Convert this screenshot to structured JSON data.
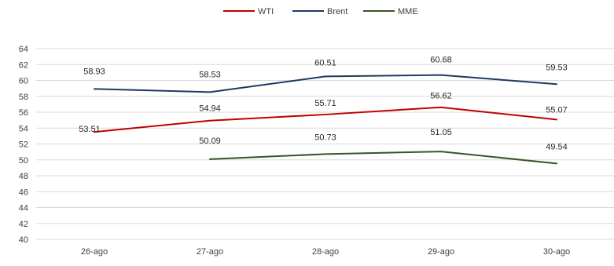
{
  "chart_data": {
    "type": "line",
    "categories": [
      "26-ago",
      "27-ago",
      "28-ago",
      "29-ago",
      "30-ago"
    ],
    "series": [
      {
        "name": "WTI",
        "values": [
          53.51,
          54.94,
          55.71,
          56.62,
          55.07
        ],
        "color": "#c00000",
        "labels": [
          "53.51",
          "54.94",
          "55.71",
          "56.62",
          "55.07"
        ]
      },
      {
        "name": "Brent",
        "values": [
          58.93,
          58.53,
          60.51,
          60.68,
          59.53
        ],
        "color": "#1f3864",
        "labels": [
          "58.93",
          "58.53",
          "60.51",
          "60.68",
          "59.53"
        ]
      },
      {
        "name": "MME",
        "values": [
          null,
          50.09,
          50.73,
          51.05,
          49.54
        ],
        "color": "#375623",
        "labels": [
          null,
          "50.09",
          "50.73",
          "51.05",
          "49.54"
        ]
      }
    ],
    "ylim": [
      40,
      64
    ],
    "yticks": [
      "40",
      "42",
      "44",
      "46",
      "48",
      "50",
      "52",
      "54",
      "56",
      "58",
      "60",
      "62",
      "64"
    ],
    "grid": true,
    "legend": "top-center",
    "title": "",
    "xlabel": "",
    "ylabel": ""
  }
}
